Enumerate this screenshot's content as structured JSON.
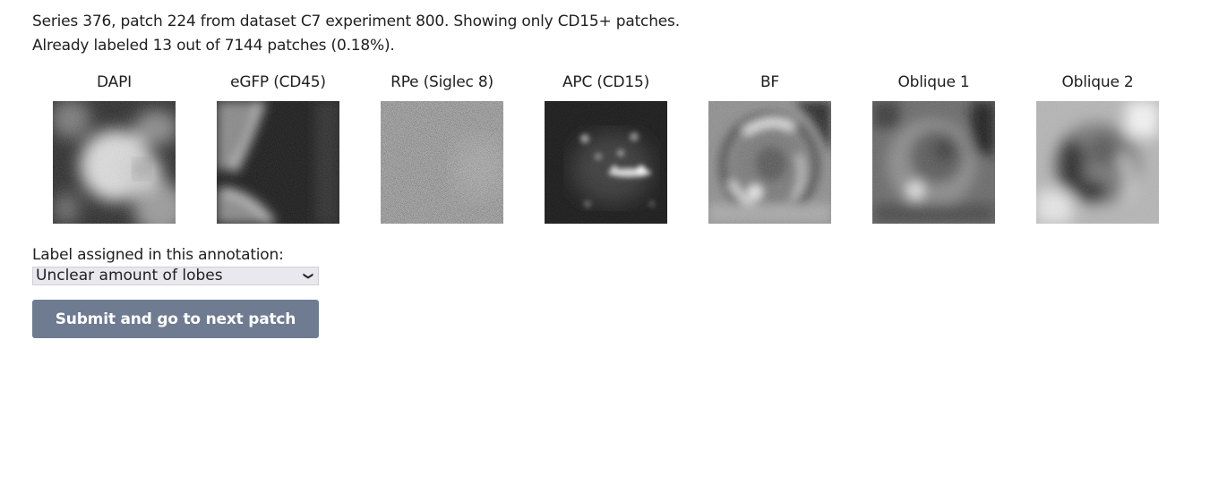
{
  "info": {
    "line1": "Series 376, patch 224 from dataset C7 experiment 800. Showing only CD15+ patches.",
    "line2": "Already labeled 13 out of 7144 patches (0.18%)."
  },
  "channels": [
    {
      "title": "DAPI",
      "icon": "dapi-patch"
    },
    {
      "title": "eGFP (CD45)",
      "icon": "egfp-patch"
    },
    {
      "title": "RPe (Siglec 8)",
      "icon": "rpe-patch"
    },
    {
      "title": "APC (CD15)",
      "icon": "apc-patch"
    },
    {
      "title": "BF",
      "icon": "bf-patch"
    },
    {
      "title": "Oblique 1",
      "icon": "oblique1-patch"
    },
    {
      "title": "Oblique 2",
      "icon": "oblique2-patch"
    }
  ],
  "annotation": {
    "label_title": "Label assigned in this annotation:",
    "selected": "Unclear amount of lobes",
    "submit_label": "Submit and go to next patch"
  },
  "colors": {
    "button_bg": "#6e7b91",
    "select_bg": "#e9e8ee"
  }
}
